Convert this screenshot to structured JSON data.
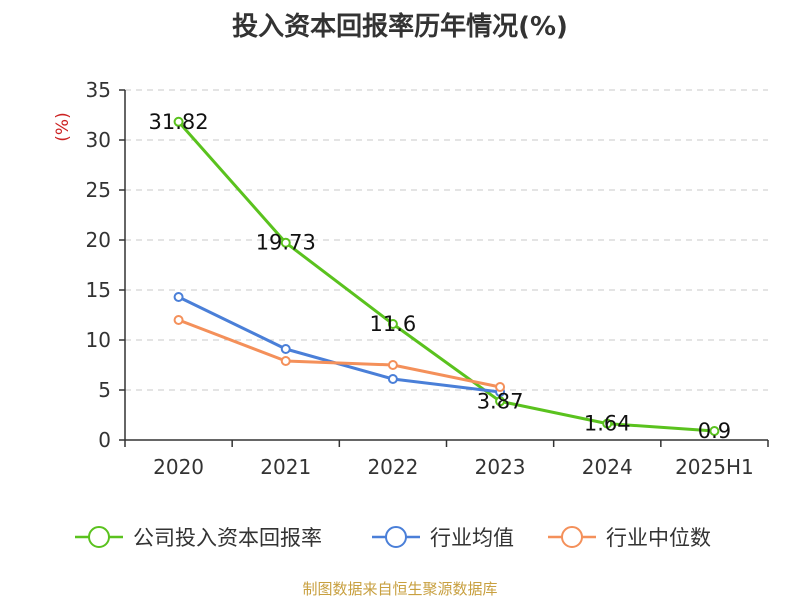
{
  "title": "投入资本回报率历年情况(%)",
  "source": "制图数据来自恒生聚源数据库",
  "colors": {
    "company": "#5ac21e",
    "industry_avg": "#4a7fd8",
    "industry_median": "#f4905a",
    "ylabel": "#cc2222"
  },
  "chart_data": {
    "type": "line",
    "title": "投入资本回报率历年情况(%)",
    "xlabel": "",
    "ylabel": "(%)",
    "ylim": [
      0,
      35
    ],
    "yticks": [
      "0",
      "5",
      "10",
      "15",
      "20",
      "25",
      "30",
      "35"
    ],
    "categories": [
      "2020",
      "2021",
      "2022",
      "2023",
      "2024",
      "2025H1"
    ],
    "grid": "horizontal dashed",
    "legend_position": "bottom",
    "series": [
      {
        "name": "公司投入资本回报率",
        "color_key": "company",
        "values": [
          31.82,
          19.73,
          11.6,
          3.87,
          1.64,
          0.9
        ],
        "labels": [
          "31.82",
          "19.73",
          "11.6",
          "3.87",
          "1.64",
          "0.9"
        ]
      },
      {
        "name": "行业均值",
        "color_key": "industry_avg",
        "values": [
          14.3,
          9.1,
          6.1,
          4.8,
          null,
          null
        ]
      },
      {
        "name": "行业中位数",
        "color_key": "industry_median",
        "values": [
          12.0,
          7.9,
          7.5,
          5.3,
          null,
          null
        ]
      }
    ]
  }
}
